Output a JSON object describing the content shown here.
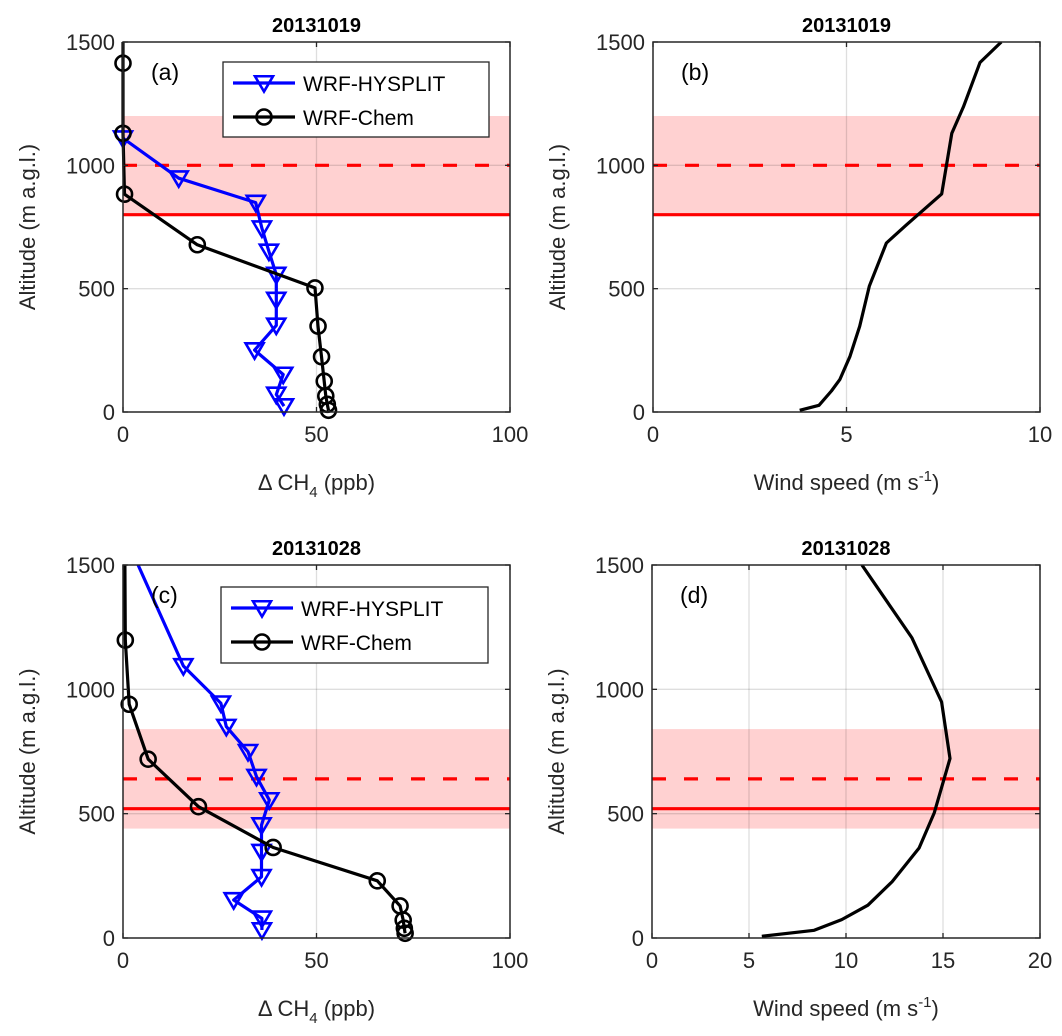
{
  "chart_data": [
    {
      "panel": "(a)",
      "type": "line",
      "title": "20131019",
      "xlabel": [
        "Δ CH",
        "4",
        " (ppb)"
      ],
      "ylabel": "Altitude (m a.g.l.)",
      "xlim": [
        0,
        100
      ],
      "ylim": [
        0,
        1500
      ],
      "xticks": [
        0,
        50,
        100
      ],
      "yticks": [
        0,
        500,
        1000,
        1500
      ],
      "grid": true,
      "legend_placement": "top-right",
      "pbl_band": [
        800,
        1200
      ],
      "pbl_solid": 800,
      "pbl_dashed": 1000,
      "series": [
        {
          "name": "WRF-HYSPLIT",
          "color": "#0000ff",
          "marker": "triangle-down",
          "x": [
            0,
            14.4,
            34.3,
            35.9,
            37.7,
            39.6,
            39.6,
            39.6,
            34.0,
            41.4,
            39.6,
            41.6
          ],
          "y": [
            1110,
            948,
            849,
            745,
            651,
            557,
            456,
            351,
            251,
            152,
            71,
            24
          ]
        },
        {
          "name": "WRF-Chem",
          "color": "#000000",
          "marker": "circle",
          "x": [
            0,
            0,
            0,
            0.4,
            19.2,
            49.6,
            50.4,
            51.3,
            52.0,
            52.4,
            52.8,
            53.1
          ],
          "y": [
            1500,
            1414,
            1130,
            883,
            678,
            503,
            348,
            224,
            125,
            65,
            31,
            7
          ],
          "marker_skip_first": true
        }
      ]
    },
    {
      "panel": "(b)",
      "type": "line",
      "title": "20131019",
      "xlabel": [
        "Wind speed (m s",
        "-1",
        ")"
      ],
      "ylabel": "Altitude (m a.g.l.)",
      "xlim": [
        0,
        10
      ],
      "ylim": [
        0,
        1500
      ],
      "xticks": [
        0,
        5,
        10
      ],
      "yticks": [
        0,
        500,
        1000,
        1500
      ],
      "grid": true,
      "pbl_band": [
        800,
        1200
      ],
      "pbl_solid": 800,
      "pbl_dashed": 1000,
      "series": [
        {
          "color": "#000000",
          "marker": "none",
          "x": [
            3.79,
            4.29,
            4.61,
            4.83,
            5.09,
            5.34,
            5.59,
            6.03,
            6.55,
            7.46,
            7.72,
            8.02,
            8.45,
            9.0
          ],
          "y": [
            7,
            27,
            85,
            132,
            226,
            348,
            510,
            685,
            759,
            884,
            1130,
            1237,
            1417,
            1500
          ]
        }
      ]
    },
    {
      "panel": "(c)",
      "type": "line",
      "title": "20131028",
      "xlabel": [
        "Δ CH",
        "4",
        " (ppb)"
      ],
      "ylabel": "Altitude (m a.g.l.)",
      "xlim": [
        0,
        100
      ],
      "ylim": [
        0,
        1500
      ],
      "xticks": [
        0,
        50,
        100
      ],
      "yticks": [
        0,
        500,
        1000,
        1500
      ],
      "grid": true,
      "legend_placement": "top-right",
      "pbl_band": [
        440,
        840
      ],
      "pbl_solid": 520,
      "pbl_dashed": 640,
      "series": [
        {
          "name": "WRF-HYSPLIT",
          "color": "#0000ff",
          "marker": "triangle-down",
          "x": [
            3.9,
            15.6,
            25.3,
            26.7,
            32.3,
            34.5,
            37.8,
            35.8,
            35.8,
            35.8,
            28.6,
            35.9,
            35.9
          ],
          "y": [
            1500,
            1094,
            944,
            850,
            749,
            649,
            555,
            454,
            347,
            246,
            153,
            79,
            32
          ],
          "marker_skip_first": true
        },
        {
          "name": "WRF-Chem",
          "color": "#000000",
          "marker": "circle",
          "x": [
            0.5,
            0.6,
            1.6,
            6.5,
            19.5,
            38.8,
            65.7,
            71.6,
            72.4,
            72.7,
            72.9
          ],
          "y": [
            1500,
            1198,
            940,
            719,
            528,
            364,
            230,
            129,
            72,
            39,
            19
          ],
          "marker_skip_first": true
        }
      ]
    },
    {
      "panel": "(d)",
      "type": "line",
      "title": "20131028",
      "xlabel": [
        "Wind speed (m s",
        "-1",
        ")"
      ],
      "ylabel": "Altitude (m a.g.l.)",
      "xlim": [
        0,
        20
      ],
      "ylim": [
        0,
        1500
      ],
      "xticks": [
        0,
        5,
        10,
        15,
        20
      ],
      "yticks": [
        0,
        500,
        1000,
        1500
      ],
      "grid": true,
      "pbl_band": [
        440,
        840
      ],
      "pbl_solid": 520,
      "pbl_dashed": 640,
      "series": [
        {
          "color": "#000000",
          "marker": "none",
          "x": [
            5.66,
            8.36,
            9.78,
            11.13,
            12.38,
            13.77,
            14.55,
            15.36,
            14.93,
            13.39,
            10.82
          ],
          "y": [
            7,
            31,
            74,
            132,
            227,
            362,
            504,
            722,
            949,
            1208,
            1500
          ]
        }
      ]
    }
  ],
  "colors": {
    "band": "#ffd1d1",
    "pbl_line": "#ff0000",
    "grid": "#e0e0e0",
    "axis": "#262626"
  }
}
